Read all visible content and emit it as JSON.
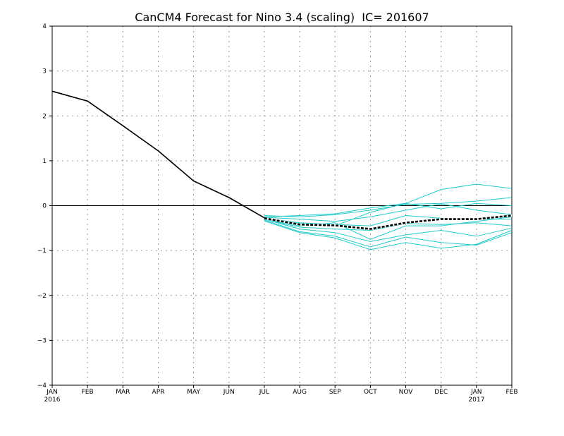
{
  "chart_data": {
    "type": "line",
    "title": "CanCM4 Forecast for Nino 3.4 (scaling)  IC= 201607",
    "xlabel": "",
    "ylabel": "",
    "x": [
      "JAN",
      "FEB",
      "MAR",
      "APR",
      "MAY",
      "JUN",
      "JUL",
      "AUG",
      "SEP",
      "OCT",
      "NOV",
      "DEC",
      "JAN",
      "FEB"
    ],
    "x_year_labels": [
      {
        "index": 0,
        "label": "2016"
      },
      {
        "index": 12,
        "label": "2017"
      }
    ],
    "ylim": [
      -4,
      4
    ],
    "yticks": [
      -4,
      -3,
      -2,
      -1,
      0,
      1,
      2,
      3,
      4
    ],
    "grid": true,
    "zero_line": true,
    "colors": {
      "observed": "#000000",
      "members": "#22c8c8",
      "ensemble_mean": "#000000",
      "grid": "#9a9a9a"
    },
    "observed": {
      "x_index": [
        0,
        1,
        2,
        3,
        4,
        5,
        6
      ],
      "values": [
        2.55,
        2.33,
        1.78,
        1.22,
        0.55,
        0.18,
        -0.27
      ]
    },
    "members": [
      {
        "x_index": [
          6,
          7,
          8,
          9,
          10,
          11,
          12,
          13
        ],
        "values": [
          -0.25,
          -0.22,
          -0.18,
          -0.05,
          0.05,
          0.36,
          0.48,
          0.38
        ]
      },
      {
        "x_index": [
          6,
          7,
          8,
          9,
          10,
          11,
          12,
          13
        ],
        "values": [
          -0.22,
          -0.25,
          -0.2,
          -0.1,
          0.03,
          0.05,
          0.1,
          0.18
        ]
      },
      {
        "x_index": [
          6,
          7,
          8,
          9,
          10,
          11,
          12,
          13
        ],
        "values": [
          -0.28,
          -0.4,
          -0.45,
          -0.15,
          0.05,
          -0.07,
          0.05,
          0.0
        ]
      },
      {
        "x_index": [
          6,
          7,
          8,
          9,
          10,
          11,
          12,
          13
        ],
        "values": [
          -0.26,
          -0.3,
          -0.35,
          -0.25,
          -0.1,
          0.04,
          -0.1,
          -0.2
        ]
      },
      {
        "x_index": [
          6,
          7,
          8,
          9,
          10,
          11,
          12,
          13
        ],
        "values": [
          -0.28,
          -0.38,
          -0.42,
          -0.45,
          -0.22,
          -0.28,
          -0.3,
          -0.3
        ]
      },
      {
        "x_index": [
          6,
          7,
          8,
          9,
          10,
          11,
          12,
          13
        ],
        "values": [
          -0.3,
          -0.48,
          -0.52,
          -0.55,
          -0.4,
          -0.42,
          -0.38,
          -0.45
        ]
      },
      {
        "x_index": [
          6,
          7,
          8,
          9,
          10,
          11,
          12,
          13
        ],
        "values": [
          -0.3,
          -0.52,
          -0.6,
          -0.8,
          -0.65,
          -0.55,
          -0.68,
          -0.5
        ]
      },
      {
        "x_index": [
          6,
          7,
          8,
          9,
          10,
          11,
          12,
          13
        ],
        "values": [
          -0.32,
          -0.58,
          -0.68,
          -0.92,
          -0.7,
          -0.82,
          -0.88,
          -0.6
        ]
      },
      {
        "x_index": [
          6,
          7,
          8,
          9,
          10,
          11,
          12,
          13
        ],
        "values": [
          -0.34,
          -0.6,
          -0.72,
          -0.98,
          -0.82,
          -0.95,
          -0.86,
          -0.55
        ]
      },
      {
        "x_index": [
          6,
          7,
          8,
          9,
          10,
          11,
          12,
          13
        ],
        "values": [
          -0.3,
          -0.45,
          -0.38,
          -0.75,
          -0.45,
          -0.45,
          -0.35,
          -0.25
        ]
      }
    ],
    "ensemble_mean": {
      "x_index": [
        6,
        7,
        8,
        9,
        10,
        11,
        12,
        13
      ],
      "values": [
        -0.28,
        -0.42,
        -0.44,
        -0.52,
        -0.38,
        -0.3,
        -0.3,
        -0.22
      ]
    }
  }
}
